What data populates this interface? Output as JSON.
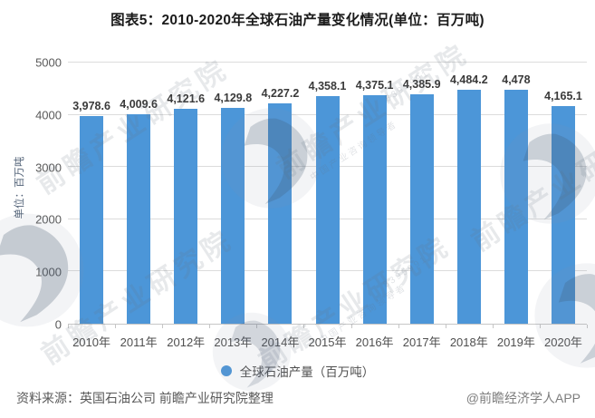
{
  "chart_data": {
    "type": "bar",
    "title": "图表5：2010-2020年全球石油产量变化情况(单位：百万吨)",
    "categories": [
      "2010年",
      "2011年",
      "2012年",
      "2013年",
      "2014年",
      "2015年",
      "2016年",
      "2017年",
      "2018年",
      "2019年",
      "2020年"
    ],
    "values": [
      3978.6,
      4009.6,
      4121.6,
      4129.8,
      4227.2,
      4358.1,
      4375.1,
      4385.9,
      4484.2,
      4478,
      4165.1
    ],
    "labels": [
      "3,978.6",
      "4,009.6",
      "4,121.6",
      "4,129.8",
      "4,227.2",
      "4,358.1",
      "4,375.1",
      "4,385.9",
      "4,484.2",
      "4,478",
      "4,165.1"
    ],
    "xlabel": "",
    "ylabel": "单位：百万吨",
    "ylim": [
      0,
      5000
    ],
    "yticks": [
      0,
      1000,
      2000,
      3000,
      4000,
      5000
    ],
    "grid": true,
    "legend": "全球石油产量（百万吨）",
    "legend_position": "bottom",
    "bar_color": "#4C96D8",
    "gridline_color": "#dcdcdc"
  },
  "footer": {
    "source": "资料来源：英国石油公司 前瞻产业研究院整理",
    "credit": "@前瞻经济学人APP"
  },
  "watermark": {
    "brand_text": "前瞻产业研究院",
    "slogan": "中国产业咨询领导者",
    "digits": "8395991"
  }
}
